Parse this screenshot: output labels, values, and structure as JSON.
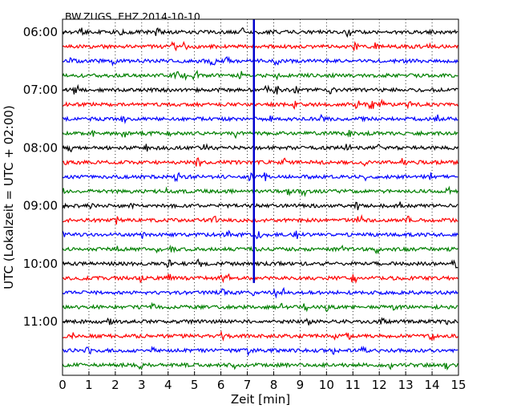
{
  "chart_data": {
    "type": "line",
    "title": "BW.ZUGS..EHZ 2014-10-10",
    "xlabel": "Zeit  [min]",
    "ylabel": "UTC (Lokalzeit = UTC + 02:00)",
    "xlim": [
      0,
      15
    ],
    "x_ticks": [
      "0",
      "1",
      "2",
      "3",
      "4",
      "5",
      "6",
      "7",
      "8",
      "9",
      "10",
      "11",
      "12",
      "13",
      "14",
      "15"
    ],
    "y_tick_labels": [
      "06:00",
      "07:00",
      "08:00",
      "09:00",
      "10:00",
      "11:00"
    ],
    "grid": "vertical dotted",
    "trace_interval_min": 15,
    "trace_colors": [
      "#000000",
      "#ff0000",
      "#0000ff",
      "#008000"
    ],
    "traces": [
      {
        "start": "06:00",
        "color": "#000000"
      },
      {
        "start": "06:15",
        "color": "#ff0000"
      },
      {
        "start": "06:30",
        "color": "#0000ff"
      },
      {
        "start": "06:45",
        "color": "#008000"
      },
      {
        "start": "07:00",
        "color": "#000000"
      },
      {
        "start": "07:15",
        "color": "#ff0000"
      },
      {
        "start": "07:30",
        "color": "#0000ff"
      },
      {
        "start": "07:45",
        "color": "#008000"
      },
      {
        "start": "08:00",
        "color": "#000000"
      },
      {
        "start": "08:15",
        "color": "#ff0000"
      },
      {
        "start": "08:30",
        "color": "#0000ff"
      },
      {
        "start": "08:45",
        "color": "#008000"
      },
      {
        "start": "09:00",
        "color": "#000000"
      },
      {
        "start": "09:15",
        "color": "#ff0000"
      },
      {
        "start": "09:30",
        "color": "#0000ff"
      },
      {
        "start": "09:45",
        "color": "#008000"
      },
      {
        "start": "10:00",
        "color": "#000000"
      },
      {
        "start": "10:15",
        "color": "#ff0000"
      },
      {
        "start": "10:30",
        "color": "#0000ff"
      },
      {
        "start": "10:45",
        "color": "#008000"
      },
      {
        "start": "11:00",
        "color": "#000000"
      },
      {
        "start": "11:15",
        "color": "#ff0000"
      },
      {
        "start": "11:30",
        "color": "#0000ff"
      },
      {
        "start": "11:45",
        "color": "#008000"
      }
    ],
    "marker": {
      "x_min": 7.25,
      "from": "06:00",
      "to": "10:15",
      "color": "#0000cc"
    }
  }
}
